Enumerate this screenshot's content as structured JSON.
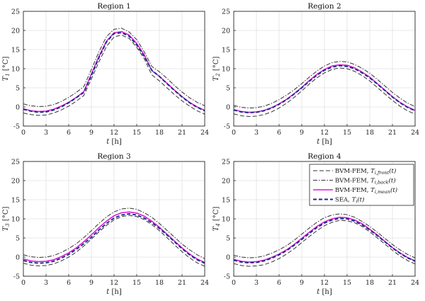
{
  "chart_data": [
    {
      "type": "line",
      "title": "Region 1",
      "xlabel": "t [h]",
      "ylabel": "T_1 [°C]",
      "xlim": [
        0,
        24
      ],
      "ylim": [
        -5,
        25
      ],
      "xticks": [
        0,
        3,
        6,
        9,
        12,
        15,
        18,
        21,
        24
      ],
      "yticks": [
        -5,
        0,
        5,
        10,
        15,
        20,
        25
      ],
      "grid": true,
      "x": [
        0,
        1,
        2,
        3,
        4,
        5,
        6,
        7,
        8,
        9,
        10,
        11,
        12,
        13,
        14,
        15,
        16,
        17,
        18,
        19,
        20,
        21,
        22,
        23,
        24
      ],
      "series": [
        {
          "name": "BVM-FEM, T_i,front(t)",
          "style": "dashed",
          "color": "#333333",
          "values": [
            -1.6,
            -2.0,
            -2.2,
            -2.1,
            -1.6,
            -0.8,
            0.2,
            1.5,
            3.0,
            7.3,
            11.8,
            15.8,
            18.3,
            18.8,
            17.9,
            15.6,
            12.6,
            8.4,
            6.8,
            5.0,
            3.2,
            1.6,
            0.2,
            -1.0,
            -1.9
          ]
        },
        {
          "name": "BVM-FEM, T_i,back(t)",
          "style": "dashdot",
          "color": "#333333",
          "values": [
            0.8,
            0.3,
            0.1,
            0.2,
            0.6,
            1.4,
            2.5,
            3.8,
            5.3,
            9.8,
            14.4,
            18.4,
            20.3,
            20.6,
            19.6,
            17.6,
            14.4,
            10.6,
            9.2,
            7.5,
            5.6,
            3.9,
            2.4,
            1.2,
            0.3
          ]
        },
        {
          "name": "BVM-FEM, T_i,mean(t)",
          "style": "solid",
          "color": "#d81bd8",
          "values": [
            -0.5,
            -1.0,
            -1.2,
            -1.1,
            -0.6,
            0.2,
            1.2,
            2.5,
            4.0,
            8.6,
            13.2,
            17.2,
            19.4,
            19.7,
            18.8,
            16.6,
            13.6,
            9.5,
            8.0,
            6.2,
            4.4,
            2.7,
            1.2,
            0.0,
            -0.9
          ]
        },
        {
          "name": "SEA, T_i(t)",
          "style": "dashed-bold",
          "color": "#1b2a8c",
          "values": [
            -0.6,
            -1.1,
            -1.4,
            -1.3,
            -0.8,
            0.0,
            1.1,
            2.4,
            3.8,
            8.2,
            12.9,
            17.0,
            19.2,
            19.4,
            18.5,
            16.2,
            13.2,
            9.6,
            8.0,
            6.1,
            4.3,
            2.6,
            1.1,
            -0.1,
            -1.0
          ]
        }
      ]
    },
    {
      "type": "line",
      "title": "Region 2",
      "xlabel": "t [h]",
      "ylabel": "T_2 [°C]",
      "xlim": [
        0,
        24
      ],
      "ylim": [
        -5,
        25
      ],
      "xticks": [
        0,
        3,
        6,
        9,
        12,
        15,
        18,
        21,
        24
      ],
      "yticks": [
        -5,
        0,
        5,
        10,
        15,
        20,
        25
      ],
      "grid": true,
      "x": [
        0,
        1,
        2,
        3,
        4,
        5,
        6,
        7,
        8,
        9,
        10,
        11,
        12,
        13,
        14,
        15,
        16,
        17,
        18,
        19,
        20,
        21,
        22,
        23,
        24
      ],
      "series": [
        {
          "name": "BVM-FEM, T_i,front(t)",
          "style": "dashed",
          "color": "#333333",
          "values": [
            -1.8,
            -2.3,
            -2.5,
            -2.4,
            -2.0,
            -1.3,
            -0.3,
            1.0,
            2.5,
            4.2,
            6.0,
            7.6,
            8.9,
            9.8,
            10.2,
            10.0,
            9.3,
            8.2,
            6.8,
            5.1,
            3.4,
            1.7,
            0.2,
            -1.0,
            -1.9
          ]
        },
        {
          "name": "BVM-FEM, T_i,back(t)",
          "style": "dashdot",
          "color": "#333333",
          "values": [
            0.4,
            -0.1,
            -0.3,
            -0.2,
            0.2,
            0.9,
            1.9,
            3.1,
            4.5,
            6.1,
            7.8,
            9.4,
            10.7,
            11.6,
            11.9,
            11.8,
            11.1,
            10.1,
            8.8,
            7.2,
            5.5,
            3.8,
            2.3,
            1.0,
            0.1
          ]
        },
        {
          "name": "BVM-FEM, T_i,mean(t)",
          "style": "solid",
          "color": "#d81bd8",
          "values": [
            -0.7,
            -1.2,
            -1.4,
            -1.3,
            -0.9,
            -0.2,
            0.8,
            2.0,
            3.5,
            5.1,
            6.9,
            8.5,
            9.8,
            10.7,
            11.0,
            10.9,
            10.2,
            9.1,
            7.8,
            6.1,
            4.4,
            2.7,
            1.2,
            0.0,
            -0.9
          ]
        },
        {
          "name": "SEA, T_i(t)",
          "style": "dashed-bold",
          "color": "#1b2a8c",
          "values": [
            -0.8,
            -1.3,
            -1.5,
            -1.4,
            -1.0,
            -0.3,
            0.7,
            1.9,
            3.4,
            5.0,
            6.7,
            8.3,
            9.6,
            10.4,
            10.8,
            10.6,
            10.0,
            8.9,
            7.6,
            6.0,
            4.3,
            2.6,
            1.1,
            -0.1,
            -1.0
          ]
        }
      ]
    },
    {
      "type": "line",
      "title": "Region 3",
      "xlabel": "t [h]",
      "ylabel": "T_3 [°C]",
      "xlim": [
        0,
        24
      ],
      "ylim": [
        -5,
        25
      ],
      "xticks": [
        0,
        3,
        6,
        9,
        12,
        15,
        18,
        21,
        24
      ],
      "yticks": [
        -5,
        0,
        5,
        10,
        15,
        20,
        25
      ],
      "grid": true,
      "x": [
        0,
        1,
        2,
        3,
        4,
        5,
        6,
        7,
        8,
        9,
        10,
        11,
        12,
        13,
        14,
        15,
        16,
        17,
        18,
        19,
        20,
        21,
        22,
        23,
        24
      ],
      "series": [
        {
          "name": "BVM-FEM, T_i,front(t)",
          "style": "dashed",
          "color": "#333333",
          "values": [
            -1.6,
            -2.1,
            -2.3,
            -2.2,
            -1.8,
            -1.0,
            0.0,
            1.3,
            2.9,
            4.7,
            6.6,
            8.3,
            9.7,
            10.6,
            10.9,
            10.6,
            9.8,
            8.5,
            6.9,
            5.1,
            3.2,
            1.4,
            -0.2,
            -1.5,
            -2.4
          ]
        },
        {
          "name": "BVM-FEM, T_i,back(t)",
          "style": "dashdot",
          "color": "#333333",
          "values": [
            0.6,
            0.1,
            -0.1,
            0.0,
            0.4,
            1.2,
            2.2,
            3.5,
            5.1,
            6.9,
            8.8,
            10.5,
            11.8,
            12.6,
            12.8,
            12.5,
            11.6,
            10.4,
            8.8,
            7.0,
            5.2,
            3.4,
            1.9,
            0.6,
            -0.4
          ]
        },
        {
          "name": "BVM-FEM, T_i,mean(t)",
          "style": "solid",
          "color": "#d81bd8",
          "values": [
            -0.5,
            -1.0,
            -1.2,
            -1.1,
            -0.7,
            0.1,
            1.1,
            2.4,
            4.0,
            5.8,
            7.7,
            9.4,
            10.8,
            11.6,
            11.8,
            11.5,
            10.7,
            9.4,
            7.8,
            6.0,
            4.2,
            2.4,
            0.8,
            -0.5,
            -1.4
          ]
        },
        {
          "name": "SEA, T_i(t)",
          "style": "dashed-bold",
          "color": "#1b2a8c",
          "values": [
            -0.9,
            -1.4,
            -1.6,
            -1.5,
            -1.1,
            -0.3,
            0.7,
            2.0,
            3.5,
            5.2,
            7.1,
            8.8,
            10.2,
            11.0,
            11.3,
            11.0,
            10.2,
            9.0,
            7.5,
            5.8,
            4.0,
            2.2,
            0.6,
            -0.7,
            -1.6
          ]
        }
      ]
    },
    {
      "type": "line",
      "title": "Region 4",
      "xlabel": "t [h]",
      "ylabel": "T_4 [°C]",
      "xlim": [
        0,
        24
      ],
      "ylim": [
        -5,
        25
      ],
      "xticks": [
        0,
        3,
        6,
        9,
        12,
        15,
        18,
        21,
        24
      ],
      "yticks": [
        -5,
        0,
        5,
        10,
        15,
        20,
        25
      ],
      "grid": true,
      "legend": "top-right",
      "x": [
        0,
        1,
        2,
        3,
        4,
        5,
        6,
        7,
        8,
        9,
        10,
        11,
        12,
        13,
        14,
        15,
        16,
        17,
        18,
        19,
        20,
        21,
        22,
        23,
        24
      ],
      "series": [
        {
          "name": "BVM-FEM, T_i,front(t)",
          "style": "dashed",
          "color": "#333333",
          "values": [
            -1.7,
            -2.2,
            -2.4,
            -2.3,
            -2.0,
            -1.3,
            -0.4,
            0.8,
            2.2,
            3.8,
            5.4,
            6.9,
            8.2,
            9.1,
            9.6,
            9.5,
            9.0,
            8.0,
            6.6,
            5.0,
            3.4,
            1.8,
            0.3,
            -0.9,
            -1.8
          ]
        },
        {
          "name": "BVM-FEM, T_i,back(t)",
          "style": "dashdot",
          "color": "#333333",
          "values": [
            0.5,
            0.0,
            -0.2,
            -0.1,
            0.3,
            1.0,
            1.9,
            3.0,
            4.4,
            6.0,
            7.6,
            9.1,
            10.3,
            11.0,
            11.3,
            11.1,
            10.4,
            9.3,
            8.0,
            6.5,
            4.9,
            3.3,
            1.9,
            0.7,
            -0.2
          ]
        },
        {
          "name": "BVM-FEM, T_i,mean(t)",
          "style": "solid",
          "color": "#d81bd8",
          "values": [
            -0.6,
            -1.1,
            -1.3,
            -1.2,
            -0.8,
            -0.1,
            0.8,
            1.9,
            3.3,
            4.9,
            6.5,
            8.0,
            9.2,
            10.0,
            10.4,
            10.3,
            9.7,
            8.7,
            7.3,
            5.8,
            4.1,
            2.5,
            1.1,
            -0.1,
            -1.0
          ]
        },
        {
          "name": "SEA, T_i(t)",
          "style": "dashed-bold",
          "color": "#1b2a8c",
          "values": [
            -0.8,
            -1.3,
            -1.5,
            -1.4,
            -1.0,
            -0.3,
            0.6,
            1.7,
            3.1,
            4.6,
            6.2,
            7.7,
            8.9,
            9.7,
            10.1,
            10.0,
            9.4,
            8.4,
            7.1,
            5.6,
            4.0,
            2.4,
            1.0,
            -0.2,
            -1.1
          ]
        }
      ]
    }
  ],
  "legend": {
    "entries": [
      {
        "prefix": "BVM-FEM, ",
        "sym": "T",
        "sub": "i,front",
        "suffix": "(t)",
        "style": "dashed",
        "color": "#333333"
      },
      {
        "prefix": "BVM-FEM, ",
        "sym": "T",
        "sub": "i,back",
        "suffix": "(t)",
        "style": "dashdot",
        "color": "#333333"
      },
      {
        "prefix": "BVM-FEM, ",
        "sym": "T",
        "sub": "i,mean",
        "suffix": "(t)",
        "style": "solid",
        "color": "#d81bd8"
      },
      {
        "prefix": "SEA, ",
        "sym": "T",
        "sub": "i",
        "suffix": "(t)",
        "style": "dashed-bold",
        "color": "#1b2a8c"
      }
    ]
  },
  "axis_text": {
    "xsym": "t",
    "xunit": " [h]",
    "ysym": "T",
    "yunit": " [°C]",
    "ysubs": [
      "1",
      "2",
      "3",
      "4"
    ]
  }
}
